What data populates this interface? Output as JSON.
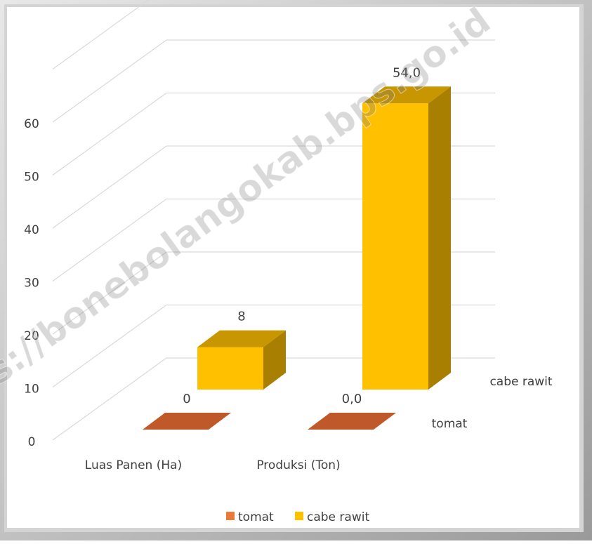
{
  "chart_data": {
    "type": "bar",
    "style": "3d-clustered-depth",
    "categories": [
      "Luas Panen (Ha)",
      "Produksi (Ton)"
    ],
    "series": [
      {
        "name": "tomat",
        "values": [
          0,
          0
        ],
        "labels": [
          "0",
          "0,0"
        ],
        "color": "#c0592a"
      },
      {
        "name": "cabe rawit",
        "values": [
          8,
          54
        ],
        "labels": [
          "8",
          "54,0"
        ],
        "color": "#ffc000"
      }
    ],
    "yticks": [
      "0",
      "10",
      "20",
      "30",
      "40",
      "50",
      "60"
    ],
    "ylim": [
      0,
      60
    ],
    "grid": true,
    "legend": "bottom",
    "watermark": "https://bonebolangokab.bps.go.id"
  }
}
